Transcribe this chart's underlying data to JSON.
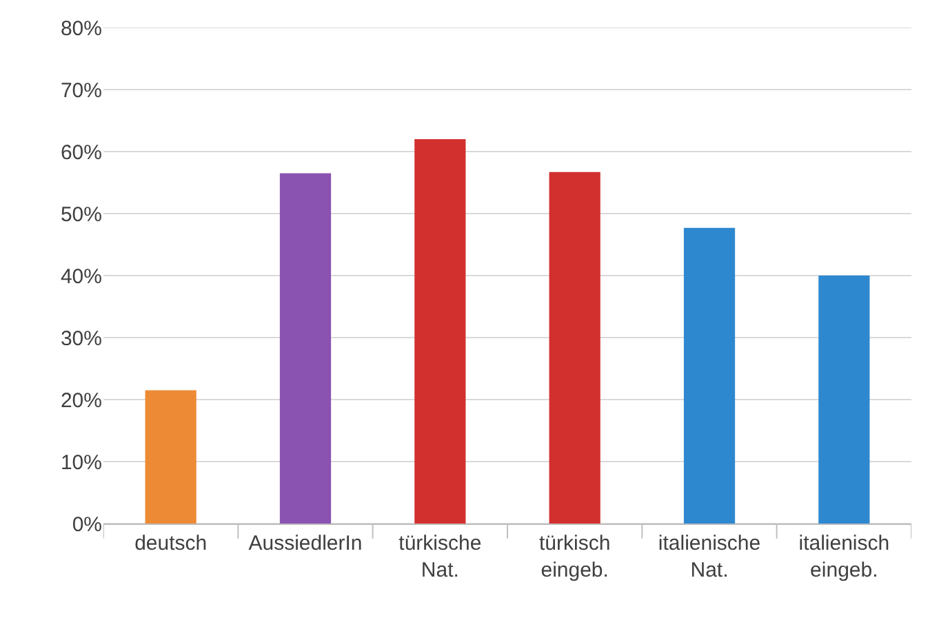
{
  "chart_data": {
    "type": "bar",
    "categories": [
      "deutsch",
      "AussiedlerIn",
      "türkische Nat.",
      "türkisch eingeb.",
      "italienische Nat.",
      "italienisch eingeb."
    ],
    "values": [
      21.5,
      56.5,
      62,
      56.7,
      47.7,
      40
    ],
    "colors": [
      "#ed8a35",
      "#8a52b1",
      "#d2302f",
      "#d2302f",
      "#2e88d0",
      "#2e88d0"
    ],
    "ylim": [
      0,
      80
    ],
    "yticks": [
      {
        "value": 0,
        "label": "0%"
      },
      {
        "value": 10,
        "label": "10%"
      },
      {
        "value": 20,
        "label": "20%"
      },
      {
        "value": 30,
        "label": "30%"
      },
      {
        "value": 40,
        "label": "40%"
      },
      {
        "value": 50,
        "label": "50%"
      },
      {
        "value": 60,
        "label": "60%"
      },
      {
        "value": 70,
        "label": "70%"
      },
      {
        "value": 80,
        "label": "80%"
      }
    ],
    "grid": "y"
  }
}
